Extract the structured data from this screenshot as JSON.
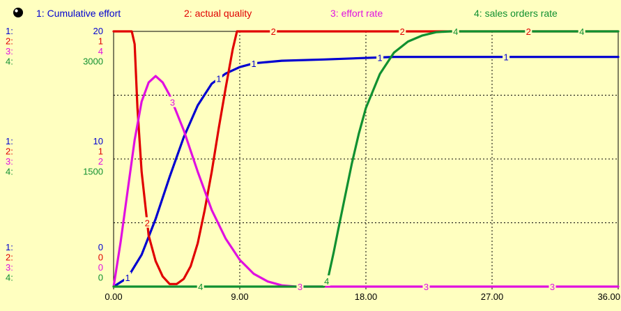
{
  "chart_data": {
    "type": "line",
    "xlabel": "",
    "ylabel": "",
    "xlim": [
      0,
      36
    ],
    "x_ticks": [
      "0.00",
      "9.00",
      "18.00",
      "27.00",
      "36.00"
    ],
    "legend_placement": "top",
    "grid": true,
    "series": [
      {
        "id": "1",
        "name": "Cumulative effort",
        "color": "#0000d0",
        "ylim": [
          0,
          20
        ],
        "axis_labels": {
          "top": "20",
          "mid": "10",
          "bottom": "0"
        },
        "x": [
          0,
          1,
          2,
          3,
          4,
          5,
          6,
          7,
          8,
          9,
          10,
          12,
          15,
          20,
          25,
          30,
          36
        ],
        "values": [
          0,
          0.7,
          2.5,
          5.3,
          8.6,
          11.7,
          14.2,
          15.9,
          16.7,
          17.2,
          17.5,
          17.7,
          17.8,
          18.0,
          18.0,
          18.0,
          18.0
        ],
        "marker_x": [
          1,
          7.5,
          10,
          19,
          28
        ]
      },
      {
        "id": "2",
        "name": "actual quality",
        "color": "#e00000",
        "ylim": [
          0,
          1
        ],
        "axis_labels": {
          "top": "1",
          "mid": "1",
          "bottom": "0"
        },
        "x": [
          0,
          1.3,
          1.5,
          1.7,
          2.0,
          2.5,
          3.0,
          3.5,
          4.0,
          4.5,
          5.0,
          5.5,
          6.0,
          6.5,
          7.0,
          7.5,
          8.0,
          8.5,
          8.8,
          9.0,
          12,
          20,
          36
        ],
        "values": [
          1,
          1,
          0.95,
          0.7,
          0.45,
          0.2,
          0.1,
          0.04,
          0.01,
          0.01,
          0.03,
          0.08,
          0.17,
          0.3,
          0.45,
          0.62,
          0.78,
          0.93,
          1,
          1,
          1,
          1,
          1
        ],
        "marker_x": [
          2.4,
          11.4,
          20.6,
          29.6
        ]
      },
      {
        "id": "3",
        "name": "effort rate",
        "color": "#e010e0",
        "ylim": [
          0,
          4
        ],
        "axis_labels": {
          "top": "4",
          "mid": "2",
          "bottom": "0"
        },
        "x": [
          0,
          0.5,
          1,
          1.5,
          2,
          2.5,
          3,
          3.5,
          4,
          5,
          6,
          7,
          8,
          9,
          10,
          11,
          12,
          13,
          14,
          20,
          36
        ],
        "values": [
          0,
          0.7,
          1.5,
          2.3,
          2.9,
          3.2,
          3.3,
          3.2,
          3.0,
          2.45,
          1.8,
          1.2,
          0.75,
          0.42,
          0.2,
          0.08,
          0.02,
          0,
          0,
          0,
          0
        ],
        "marker_x": [
          4.2,
          13.3,
          22.3,
          31.3
        ]
      },
      {
        "id": "4",
        "name": "sales orders rate",
        "color": "#109030",
        "ylim": [
          0,
          3000
        ],
        "axis_labels": {
          "top": "3000",
          "mid": "1500",
          "bottom": "0"
        },
        "x": [
          0,
          14.9,
          15.0,
          15.3,
          15.7,
          16.0,
          16.5,
          17.0,
          17.5,
          18.0,
          19.0,
          20.0,
          21.0,
          22.0,
          23.0,
          24.0,
          26.0,
          30.0,
          36.0
        ],
        "values": [
          0,
          0,
          0,
          100,
          400,
          650,
          1050,
          1450,
          1800,
          2100,
          2500,
          2750,
          2880,
          2950,
          2990,
          3000,
          3000,
          3000,
          3000
        ],
        "marker_x": [
          6.2,
          15.2,
          24.4,
          33.4
        ]
      }
    ]
  }
}
